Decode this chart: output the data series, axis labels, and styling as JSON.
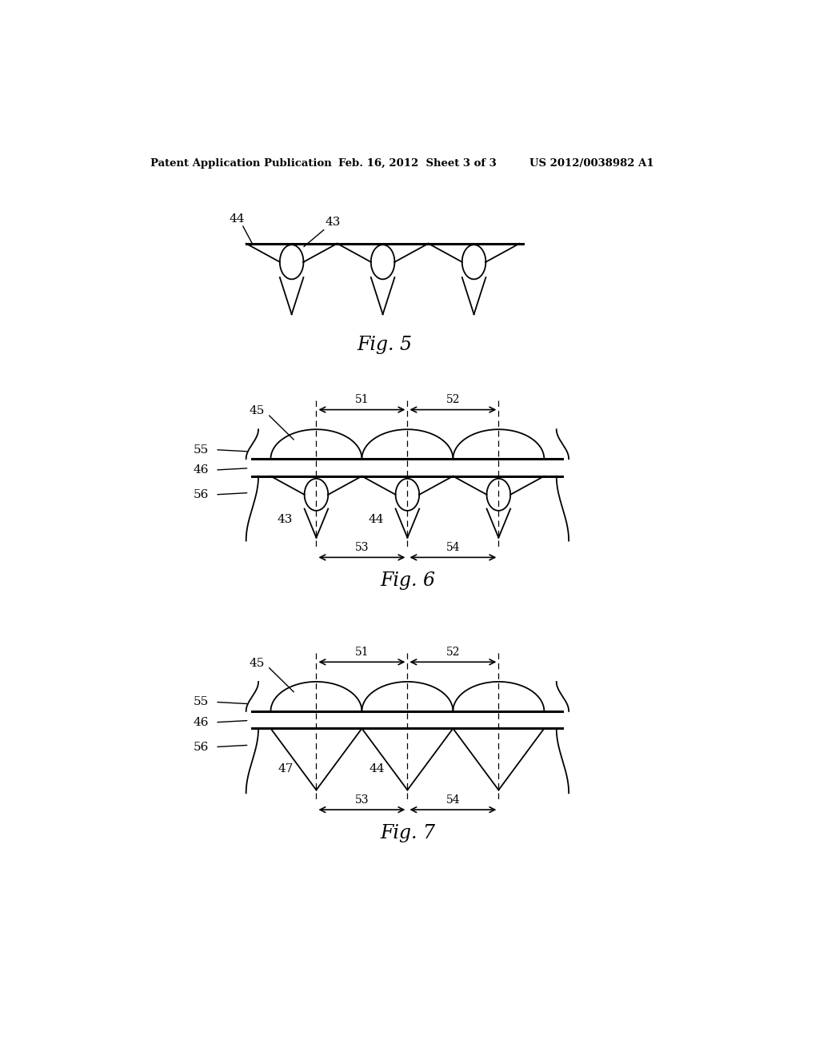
{
  "bg_color": "#ffffff",
  "header_left": "Patent Application Publication",
  "header_mid": "Feb. 16, 2012  Sheet 3 of 3",
  "header_right": "US 2012/0038982 A1",
  "fig5_caption": "Fig. 5",
  "fig6_caption": "Fig. 6",
  "fig7_caption": "Fig. 7"
}
